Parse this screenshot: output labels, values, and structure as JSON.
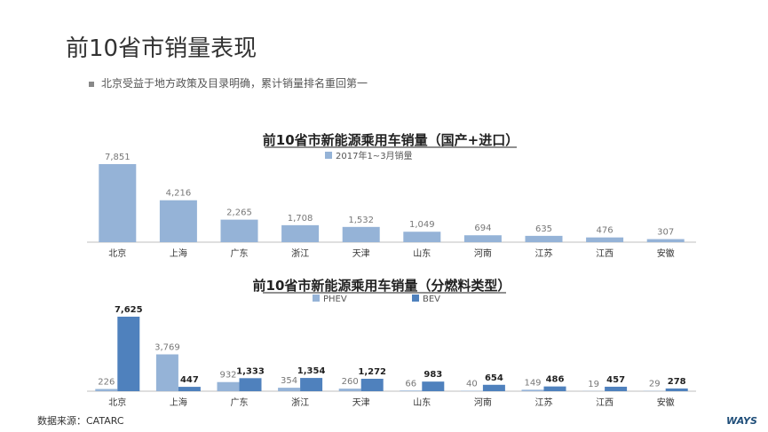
{
  "page": {
    "title": "前10省市销量表现",
    "bullet": "北京受益于地方政策及目录明确，累计销量排名重回第一",
    "source": "数据来源：CATARC",
    "logo_text": "WAYS"
  },
  "colors": {
    "total": "#95b3d7",
    "phev": "#95b3d7",
    "bev": "#4f81bd"
  },
  "chart_data": [
    {
      "type": "bar",
      "title": "前10省市新能源乘用车销量（国产+进口）",
      "categories": [
        "北京",
        "上海",
        "广东",
        "浙江",
        "天津",
        "山东",
        "河南",
        "江苏",
        "江西",
        "安徽"
      ],
      "series": [
        {
          "name": "2017年1~3月销量",
          "values": [
            7851,
            4216,
            2265,
            1708,
            1532,
            1049,
            694,
            635,
            476,
            307
          ]
        }
      ],
      "value_labels": [
        "7,851",
        "4,216",
        "2,265",
        "1,708",
        "1,532",
        "1,049",
        "694",
        "635",
        "476",
        "307"
      ],
      "legend": "top-center",
      "grid": false
    },
    {
      "type": "bar",
      "title": "前10省市新能源乘用车销量（分燃料类型）",
      "categories": [
        "北京",
        "上海",
        "广东",
        "浙江",
        "天津",
        "山东",
        "河南",
        "江苏",
        "江西",
        "安徽"
      ],
      "series": [
        {
          "name": "PHEV",
          "values": [
            226,
            3769,
            932,
            354,
            260,
            66,
            40,
            149,
            19,
            29
          ]
        },
        {
          "name": "BEV",
          "values": [
            7625,
            447,
            1333,
            1354,
            1272,
            983,
            654,
            486,
            457,
            278
          ]
        }
      ],
      "value_labels": {
        "PHEV": [
          "226",
          "3,769",
          "932",
          "354",
          "260",
          "66",
          "40",
          "149",
          "19",
          "29"
        ],
        "BEV": [
          "7,625",
          "447",
          "1,333",
          "1,354",
          "1,272",
          "983",
          "654",
          "486",
          "457",
          "278"
        ]
      },
      "legend": "top-center",
      "grid": false
    }
  ]
}
